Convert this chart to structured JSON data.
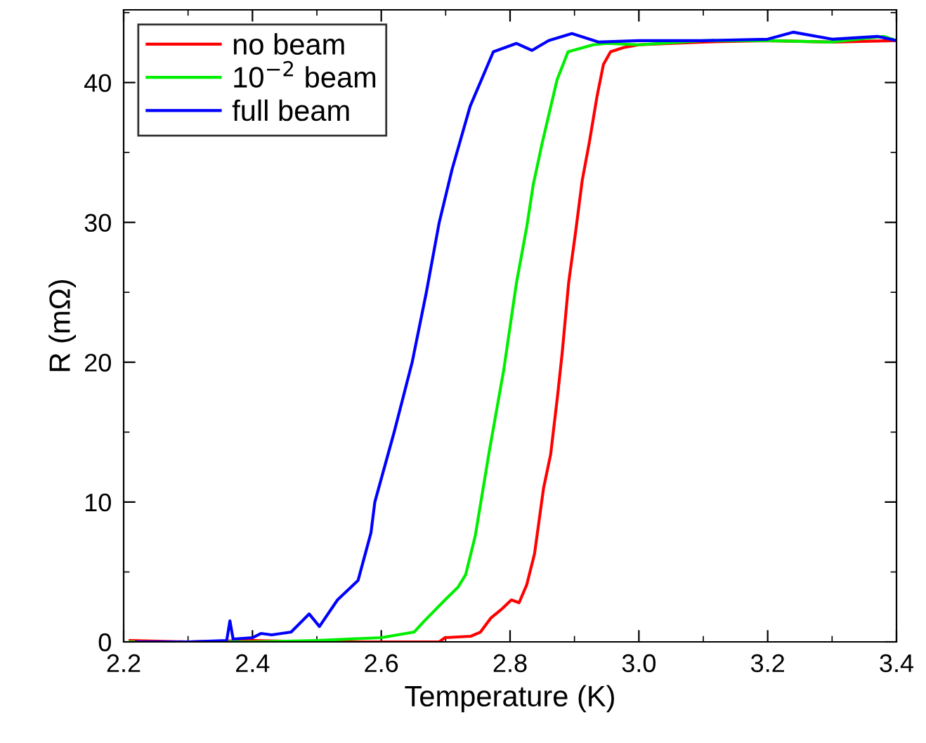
{
  "chart_data": {
    "type": "line",
    "xlabel": "Temperature (K)",
    "ylabel": "R (mΩ)",
    "xlim": [
      2.2,
      3.4
    ],
    "xticks": [
      {
        "value": 2.2,
        "label": "2.2"
      },
      {
        "value": 2.4,
        "label": "2.4"
      },
      {
        "value": 2.6,
        "label": "2.6"
      },
      {
        "value": 2.8,
        "label": "2.8"
      },
      {
        "value": 3.0,
        "label": "3.0"
      },
      {
        "value": 3.2,
        "label": "3.2"
      },
      {
        "value": 3.4,
        "label": "3.4"
      }
    ],
    "ylim": [
      0,
      45.2
    ],
    "yticks": [
      0,
      10,
      20,
      30,
      40
    ],
    "grid": false,
    "legend": "top left",
    "line_style": "solid",
    "marker": "none",
    "series": [
      {
        "name": "no beam",
        "color": "#ff0000",
        "x": [
          2.21,
          2.3,
          2.4,
          2.5,
          2.6,
          2.69,
          2.699,
          2.739,
          2.754,
          2.77,
          2.786,
          2.802,
          2.814,
          2.826,
          2.838,
          2.852,
          2.863,
          2.874,
          2.881,
          2.891,
          2.902,
          2.912,
          2.923,
          2.935,
          2.945,
          2.956,
          2.976,
          3.0,
          3.1,
          3.2,
          3.3,
          3.4
        ],
        "values": [
          0.1,
          0,
          0.1,
          0,
          0,
          0,
          0.3,
          0.4,
          0.7,
          1.7,
          2.3,
          3.0,
          2.8,
          4.1,
          6.3,
          11.0,
          13.4,
          17.7,
          20.7,
          25.7,
          29.4,
          33.0,
          35.7,
          39.0,
          41.3,
          42.2,
          42.5,
          42.7,
          42.9,
          43,
          42.9,
          43
        ]
      },
      {
        "name": "10$^{−2}$ beam",
        "color": "#00ee00",
        "x": [
          2.21,
          2.3,
          2.4,
          2.5,
          2.6,
          2.651,
          2.667,
          2.699,
          2.719,
          2.731,
          2.746,
          2.768,
          2.79,
          2.81,
          2.826,
          2.836,
          2.85,
          2.873,
          2.89,
          2.929,
          2.95,
          3.0,
          3.1,
          3.2,
          3.3,
          3.38,
          3.4
        ],
        "values": [
          0,
          0,
          0,
          0.1,
          0.3,
          0.7,
          1.5,
          3.0,
          3.9,
          4.8,
          7.6,
          13.7,
          19.4,
          25.7,
          29.7,
          32.7,
          35.7,
          40.2,
          42.2,
          42.7,
          42.8,
          42.7,
          43,
          43,
          42.9,
          43.3,
          43
        ]
      },
      {
        "name": "full beam",
        "color": "#0000ff",
        "x": [
          2.22,
          2.3,
          2.36,
          2.365,
          2.37,
          2.4,
          2.413,
          2.43,
          2.46,
          2.488,
          2.504,
          2.532,
          2.564,
          2.584,
          2.59,
          2.62,
          2.648,
          2.67,
          2.69,
          2.71,
          2.738,
          2.774,
          2.81,
          2.834,
          2.86,
          2.896,
          2.937,
          3.0,
          3.1,
          3.2,
          3.24,
          3.3,
          3.37,
          3.4
        ],
        "values": [
          0,
          0,
          0.1,
          1.5,
          0.2,
          0.3,
          0.6,
          0.5,
          0.7,
          2.0,
          1.1,
          3.0,
          4.4,
          7.8,
          10,
          15,
          20,
          25,
          30,
          33.8,
          38.3,
          42.2,
          42.8,
          42.3,
          43,
          43.5,
          42.9,
          43,
          43,
          43.1,
          43.6,
          43.1,
          43.3,
          43
        ]
      }
    ]
  }
}
